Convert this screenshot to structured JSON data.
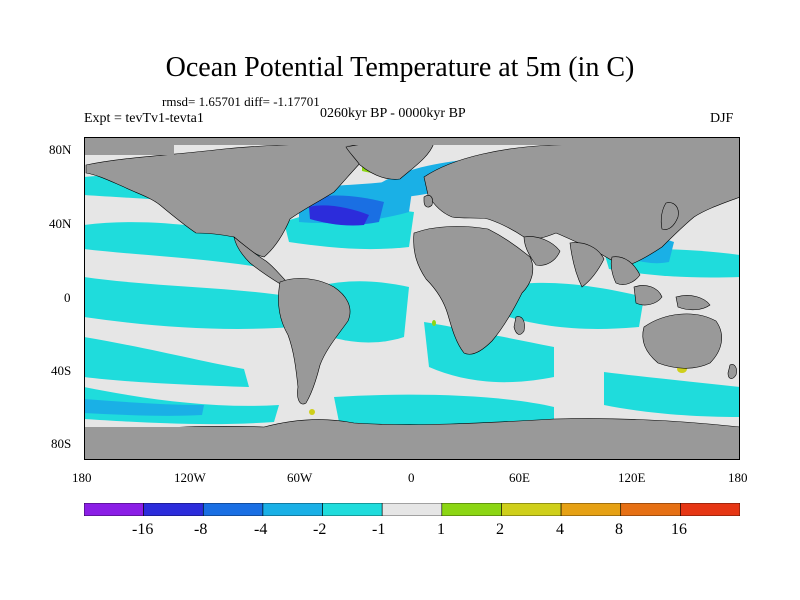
{
  "title": "Ocean Potential Temperature at 5m (in C)",
  "stats": "rmsd= 1.65701 diff= -1.17701",
  "experiment": "Expt = tevTv1-tevta1",
  "period": "0260kyr BP - 0000kyr BP",
  "season": "DJF",
  "lat_labels": [
    "80N",
    "40N",
    "0",
    "40S",
    "80S"
  ],
  "lon_labels": [
    "180",
    "120W",
    "60W",
    "0",
    "60E",
    "120E",
    "180"
  ],
  "colorbar": {
    "labels": [
      "-16",
      "-8",
      "-4",
      "-2",
      "-1",
      "1",
      "2",
      "4",
      "8",
      "16"
    ],
    "colors": [
      "#8b1ee6",
      "#2c2cdb",
      "#1a6fe3",
      "#1ab0e6",
      "#1fdcdc",
      "#e6e6e6",
      "#8cd614",
      "#cfcf1a",
      "#e6a114",
      "#e67014",
      "#e63614"
    ]
  },
  "colors": {
    "land": "#999999",
    "ocean_neutral": "#e6e6e6"
  }
}
